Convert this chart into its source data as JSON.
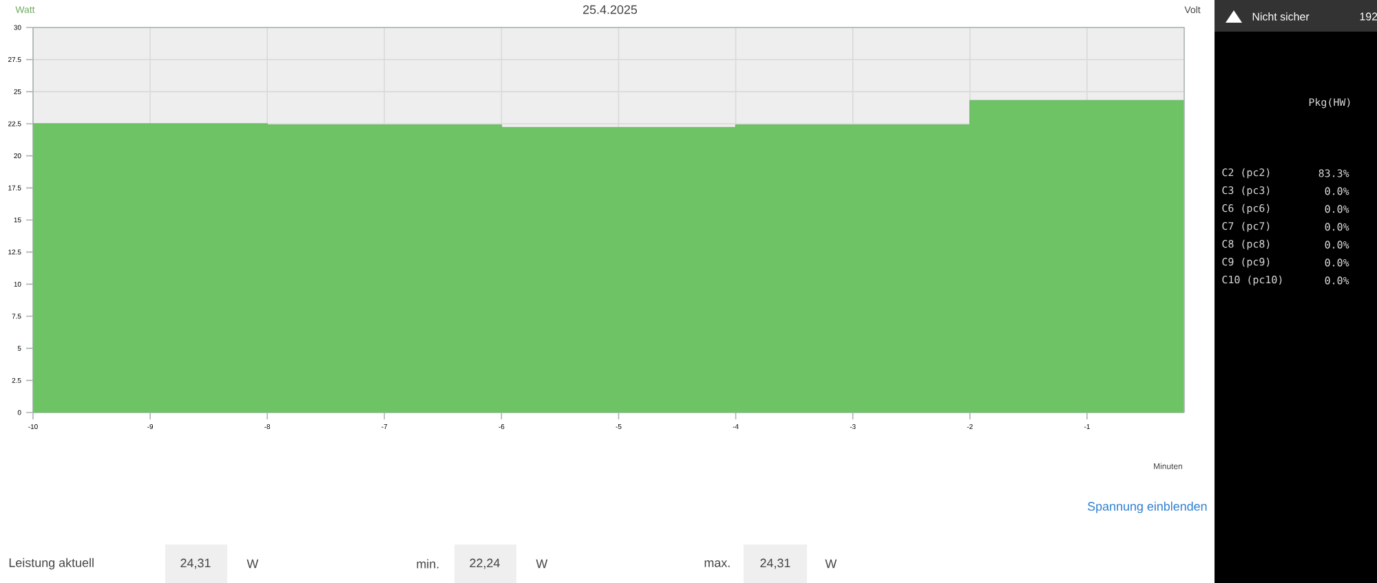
{
  "chart_data": {
    "type": "area",
    "title": "25.4.2025",
    "ylabel": "Watt",
    "xlabel": "Minuten",
    "x": [
      -10,
      -8,
      -8,
      -6,
      -6,
      -4,
      -4,
      -2,
      -2,
      -0.17
    ],
    "values": [
      22.5,
      22.5,
      22.4,
      22.4,
      22.2,
      22.2,
      22.4,
      22.4,
      24.3,
      24.3
    ],
    "color": "#6ec464",
    "xlim": [
      -10,
      -0.17
    ],
    "ylim": [
      0,
      30
    ],
    "xticks": [
      -10,
      -9,
      -8,
      -7,
      -6,
      -5,
      -4,
      -3,
      -2,
      -1
    ],
    "yticks": [
      0,
      2.5,
      5,
      7.5,
      10,
      12.5,
      15,
      17.5,
      20,
      22.5,
      25,
      27.5,
      30
    ],
    "grid": true,
    "marker": "none",
    "annotations": [
      "Volt",
      "Spannung einblenden",
      "Leistung aktuell",
      "24,31",
      "W",
      "min.",
      "22,24",
      "W",
      "max.",
      "24,31",
      "W",
      "Nicht sicher",
      "192",
      "Pkg(HW)",
      "C2 (pc2)",
      "83.3%",
      "C3 (pc3)",
      "0.0%",
      "C6 (pc6)",
      "0.0%",
      "C7 (pc7)",
      "0.0%",
      "C8 (pc8)",
      "0.0%",
      "C9 (pc9)",
      "0.0%",
      "C10 (pc10)",
      "0.0%"
    ]
  }
}
